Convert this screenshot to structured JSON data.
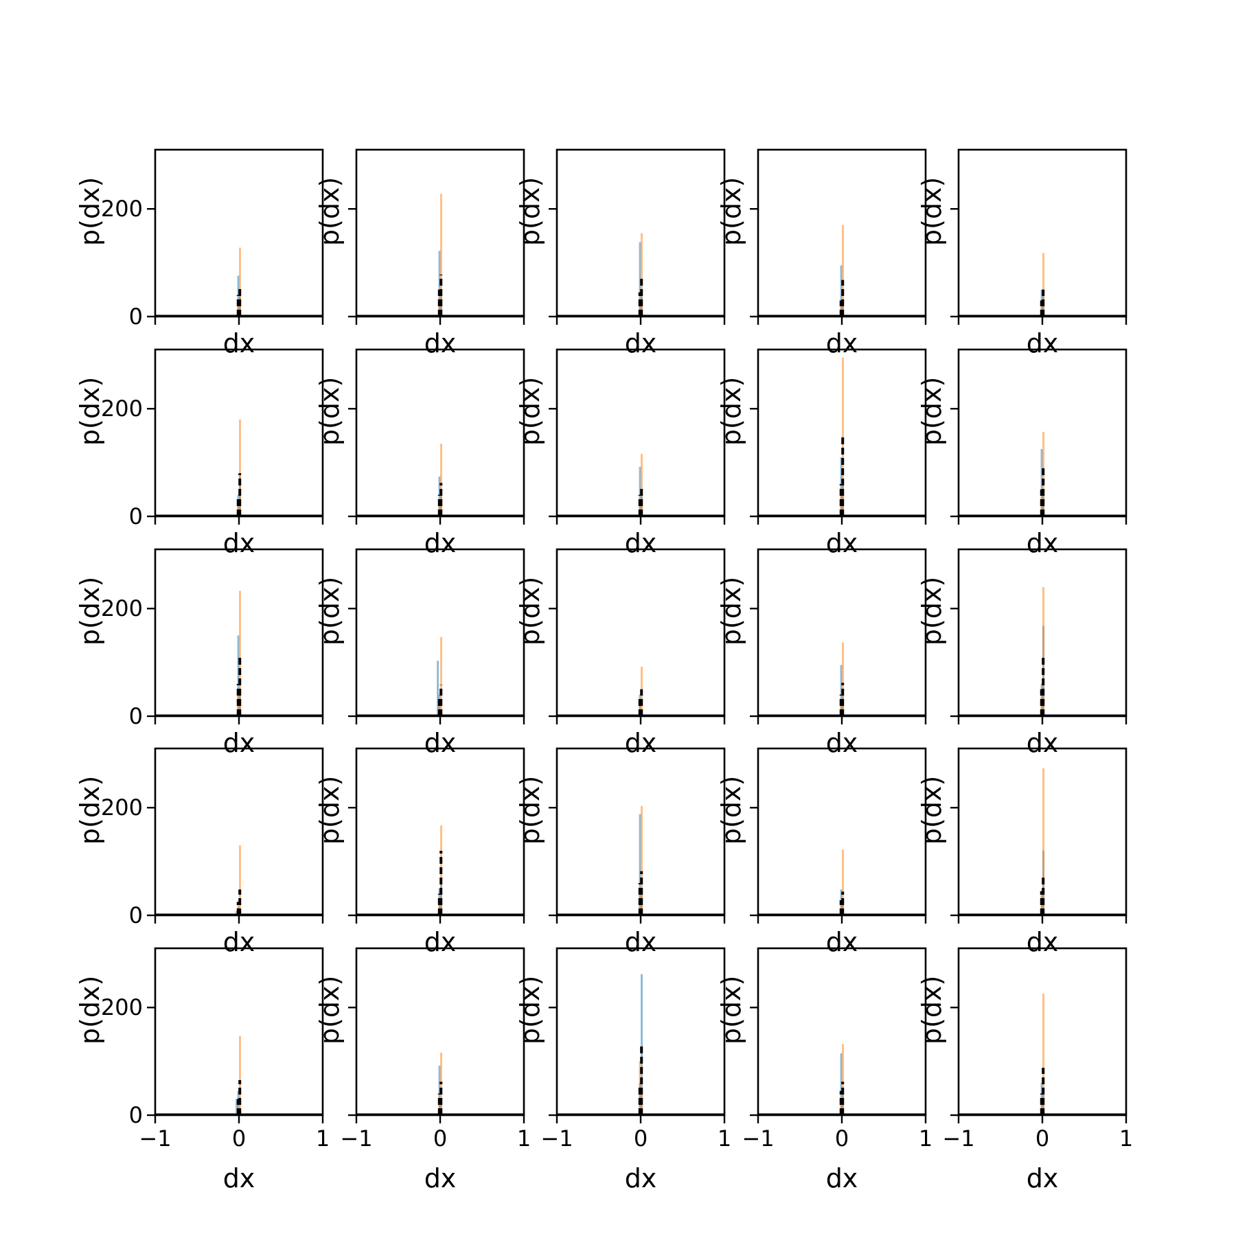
{
  "figure": {
    "rows": 5,
    "cols": 5,
    "background": "#ffffff"
  },
  "chart_data": {
    "type": "histogram-grid",
    "xlabel": "dx",
    "ylabel": "p(dx)",
    "xlim": [
      -1,
      1
    ],
    "ylim": [
      0,
      310
    ],
    "xticks": [
      -1,
      0,
      1
    ],
    "xtick_labels": [
      "−1",
      "0",
      "1"
    ],
    "yticks": [
      0,
      200
    ],
    "ytick_labels": [
      "0",
      "200"
    ],
    "bin_width": 0.02,
    "colors": {
      "blue": "#1f77b4",
      "orange": "#ff7f0e",
      "black": "#000000"
    },
    "series_styles": {
      "blue": "filled bars, alpha 0.5",
      "orange": "filled bars, alpha 0.5",
      "black": "dashed step line"
    },
    "panels": [
      {
        "row": 0,
        "col": 0,
        "blue": [
          {
            "x": -0.01,
            "y": 76
          },
          {
            "x": 0.01,
            "y": 38
          }
        ],
        "orange": [
          {
            "x": 0.01,
            "y": 128
          },
          {
            "x": -0.01,
            "y": 30
          }
        ],
        "black": [
          {
            "x": -0.01,
            "y": 40
          },
          {
            "x": 0.01,
            "y": 55
          }
        ]
      },
      {
        "row": 0,
        "col": 1,
        "blue": [
          {
            "x": -0.01,
            "y": 122
          },
          {
            "x": 0.01,
            "y": 40
          }
        ],
        "orange": [
          {
            "x": 0.01,
            "y": 228
          },
          {
            "x": -0.01,
            "y": 35
          }
        ],
        "black": [
          {
            "x": -0.01,
            "y": 50
          },
          {
            "x": 0.01,
            "y": 78
          }
        ]
      },
      {
        "row": 0,
        "col": 2,
        "blue": [
          {
            "x": -0.01,
            "y": 138
          },
          {
            "x": 0.01,
            "y": 40
          }
        ],
        "orange": [
          {
            "x": 0.01,
            "y": 155
          },
          {
            "x": -0.01,
            "y": 30
          }
        ],
        "black": [
          {
            "x": -0.01,
            "y": 45
          },
          {
            "x": 0.01,
            "y": 75
          }
        ]
      },
      {
        "row": 0,
        "col": 3,
        "blue": [
          {
            "x": -0.01,
            "y": 95
          },
          {
            "x": 0.01,
            "y": 30
          }
        ],
        "orange": [
          {
            "x": 0.01,
            "y": 170
          },
          {
            "x": -0.01,
            "y": 25
          }
        ],
        "black": [
          {
            "x": -0.01,
            "y": 30
          },
          {
            "x": 0.01,
            "y": 68
          }
        ]
      },
      {
        "row": 0,
        "col": 4,
        "blue": [
          {
            "x": -0.01,
            "y": 50
          },
          {
            "x": 0.01,
            "y": 45
          }
        ],
        "orange": [
          {
            "x": 0.01,
            "y": 118
          },
          {
            "x": -0.01,
            "y": 25
          }
        ],
        "black": [
          {
            "x": -0.01,
            "y": 30
          },
          {
            "x": 0.01,
            "y": 50
          }
        ]
      },
      {
        "row": 1,
        "col": 0,
        "blue": [
          {
            "x": -0.01,
            "y": 40
          },
          {
            "x": 0.01,
            "y": 75
          }
        ],
        "orange": [
          {
            "x": 0.01,
            "y": 180
          },
          {
            "x": -0.01,
            "y": 30
          }
        ],
        "black": [
          {
            "x": -0.01,
            "y": 35
          },
          {
            "x": 0.01,
            "y": 80
          }
        ]
      },
      {
        "row": 1,
        "col": 1,
        "blue": [
          {
            "x": -0.01,
            "y": 74
          },
          {
            "x": 0.01,
            "y": 45
          }
        ],
        "orange": [
          {
            "x": 0.01,
            "y": 135
          },
          {
            "x": -0.01,
            "y": 30
          }
        ],
        "black": [
          {
            "x": -0.01,
            "y": 40
          },
          {
            "x": 0.01,
            "y": 62
          }
        ]
      },
      {
        "row": 1,
        "col": 2,
        "blue": [
          {
            "x": -0.01,
            "y": 92
          },
          {
            "x": 0.01,
            "y": 40
          }
        ],
        "orange": [
          {
            "x": 0.01,
            "y": 116
          },
          {
            "x": -0.01,
            "y": 30
          }
        ],
        "black": [
          {
            "x": -0.01,
            "y": 40
          },
          {
            "x": 0.01,
            "y": 55
          }
        ]
      },
      {
        "row": 1,
        "col": 3,
        "blue": [
          {
            "x": -0.01,
            "y": 110
          },
          {
            "x": 0.01,
            "y": 60
          }
        ],
        "orange": [
          {
            "x": 0.01,
            "y": 295
          },
          {
            "x": -0.01,
            "y": 40
          }
        ],
        "black": [
          {
            "x": -0.01,
            "y": 60
          },
          {
            "x": 0.01,
            "y": 150
          }
        ]
      },
      {
        "row": 1,
        "col": 4,
        "blue": [
          {
            "x": -0.01,
            "y": 125
          },
          {
            "x": 0.01,
            "y": 50
          }
        ],
        "orange": [
          {
            "x": 0.01,
            "y": 157
          },
          {
            "x": -0.01,
            "y": 35
          }
        ],
        "black": [
          {
            "x": -0.01,
            "y": 50
          },
          {
            "x": 0.01,
            "y": 95
          }
        ]
      },
      {
        "row": 2,
        "col": 0,
        "blue": [
          {
            "x": -0.01,
            "y": 150
          },
          {
            "x": 0.01,
            "y": 50
          }
        ],
        "orange": [
          {
            "x": 0.01,
            "y": 233
          },
          {
            "x": -0.01,
            "y": 40
          }
        ],
        "black": [
          {
            "x": -0.01,
            "y": 60
          },
          {
            "x": 0.01,
            "y": 112
          }
        ]
      },
      {
        "row": 2,
        "col": 1,
        "blue": [
          {
            "x": -0.03,
            "y": 103
          },
          {
            "x": -0.01,
            "y": 40
          }
        ],
        "orange": [
          {
            "x": 0.01,
            "y": 147
          },
          {
            "x": -0.01,
            "y": 30
          }
        ],
        "black": [
          {
            "x": -0.01,
            "y": 38
          },
          {
            "x": 0.01,
            "y": 58
          }
        ]
      },
      {
        "row": 2,
        "col": 2,
        "blue": [
          {
            "x": -0.01,
            "y": 40
          },
          {
            "x": 0.01,
            "y": 10
          }
        ],
        "orange": [
          {
            "x": 0.01,
            "y": 92
          },
          {
            "x": -0.01,
            "y": 25
          }
        ],
        "black": [
          {
            "x": -0.01,
            "y": 35
          },
          {
            "x": 0.01,
            "y": 50
          }
        ]
      },
      {
        "row": 2,
        "col": 3,
        "blue": [
          {
            "x": -0.01,
            "y": 95
          },
          {
            "x": 0.01,
            "y": 40
          }
        ],
        "orange": [
          {
            "x": 0.01,
            "y": 137
          },
          {
            "x": -0.01,
            "y": 30
          }
        ],
        "black": [
          {
            "x": -0.01,
            "y": 40
          },
          {
            "x": 0.01,
            "y": 62
          }
        ]
      },
      {
        "row": 2,
        "col": 4,
        "blue": [
          {
            "x": -0.01,
            "y": 60
          },
          {
            "x": 0.01,
            "y": 168
          }
        ],
        "orange": [
          {
            "x": 0.01,
            "y": 240
          },
          {
            "x": -0.01,
            "y": 35
          }
        ],
        "black": [
          {
            "x": -0.01,
            "y": 50
          },
          {
            "x": 0.01,
            "y": 110
          }
        ]
      },
      {
        "row": 3,
        "col": 0,
        "blue": [
          {
            "x": -0.03,
            "y": 8
          },
          {
            "x": -0.01,
            "y": 15
          }
        ],
        "orange": [
          {
            "x": 0.01,
            "y": 130
          },
          {
            "x": -0.01,
            "y": 20
          }
        ],
        "black": [
          {
            "x": -0.01,
            "y": 25
          },
          {
            "x": 0.01,
            "y": 48
          }
        ]
      },
      {
        "row": 3,
        "col": 1,
        "blue": [
          {
            "x": -0.01,
            "y": 50
          },
          {
            "x": 0.01,
            "y": 60
          }
        ],
        "orange": [
          {
            "x": 0.01,
            "y": 167
          },
          {
            "x": -0.01,
            "y": 30
          }
        ],
        "black": [
          {
            "x": -0.01,
            "y": 40
          },
          {
            "x": 0.01,
            "y": 120
          }
        ]
      },
      {
        "row": 3,
        "col": 2,
        "blue": [
          {
            "x": -0.01,
            "y": 188
          },
          {
            "x": 0.01,
            "y": 50
          }
        ],
        "orange": [
          {
            "x": 0.01,
            "y": 203
          },
          {
            "x": -0.01,
            "y": 40
          }
        ],
        "black": [
          {
            "x": -0.01,
            "y": 60
          },
          {
            "x": 0.01,
            "y": 82
          }
        ]
      },
      {
        "row": 3,
        "col": 3,
        "blue": [
          {
            "x": -0.01,
            "y": 48
          },
          {
            "x": 0.01,
            "y": 30
          }
        ],
        "orange": [
          {
            "x": 0.01,
            "y": 122
          },
          {
            "x": -0.01,
            "y": 25
          }
        ],
        "black": [
          {
            "x": -0.01,
            "y": 28
          },
          {
            "x": 0.01,
            "y": 44
          }
        ]
      },
      {
        "row": 3,
        "col": 4,
        "blue": [
          {
            "x": -0.01,
            "y": 40
          },
          {
            "x": 0.01,
            "y": 120
          }
        ],
        "orange": [
          {
            "x": 0.01,
            "y": 273
          },
          {
            "x": -0.01,
            "y": 35
          }
        ],
        "black": [
          {
            "x": -0.01,
            "y": 45
          },
          {
            "x": 0.01,
            "y": 70
          }
        ]
      },
      {
        "row": 4,
        "col": 0,
        "blue": [
          {
            "x": -0.03,
            "y": 30
          },
          {
            "x": -0.01,
            "y": 45
          }
        ],
        "orange": [
          {
            "x": 0.01,
            "y": 147
          },
          {
            "x": -0.01,
            "y": 25
          }
        ],
        "black": [
          {
            "x": -0.01,
            "y": 30
          },
          {
            "x": 0.01,
            "y": 65
          }
        ]
      },
      {
        "row": 4,
        "col": 1,
        "blue": [
          {
            "x": -0.01,
            "y": 92
          },
          {
            "x": 0.01,
            "y": 30
          }
        ],
        "orange": [
          {
            "x": 0.01,
            "y": 116
          },
          {
            "x": -0.01,
            "y": 20
          }
        ],
        "black": [
          {
            "x": -0.01,
            "y": 40
          },
          {
            "x": 0.01,
            "y": 62
          }
        ]
      },
      {
        "row": 4,
        "col": 2,
        "blue": [
          {
            "x": 0.01,
            "y": 262
          },
          {
            "x": -0.01,
            "y": 60
          }
        ],
        "orange": [
          {
            "x": -0.01,
            "y": 100
          },
          {
            "x": 0.01,
            "y": 50
          }
        ],
        "black": [
          {
            "x": -0.01,
            "y": 55
          },
          {
            "x": 0.01,
            "y": 132
          }
        ]
      },
      {
        "row": 4,
        "col": 3,
        "blue": [
          {
            "x": -0.01,
            "y": 115
          },
          {
            "x": 0.01,
            "y": 40
          }
        ],
        "orange": [
          {
            "x": 0.01,
            "y": 132
          },
          {
            "x": -0.01,
            "y": 30
          }
        ],
        "black": [
          {
            "x": -0.01,
            "y": 45
          },
          {
            "x": 0.01,
            "y": 62
          }
        ]
      },
      {
        "row": 4,
        "col": 4,
        "blue": [
          {
            "x": -0.01,
            "y": 60
          },
          {
            "x": 0.01,
            "y": 50
          }
        ],
        "orange": [
          {
            "x": 0.01,
            "y": 226
          },
          {
            "x": -0.01,
            "y": 30
          }
        ],
        "black": [
          {
            "x": -0.01,
            "y": 40
          },
          {
            "x": 0.01,
            "y": 88
          }
        ]
      }
    ]
  }
}
